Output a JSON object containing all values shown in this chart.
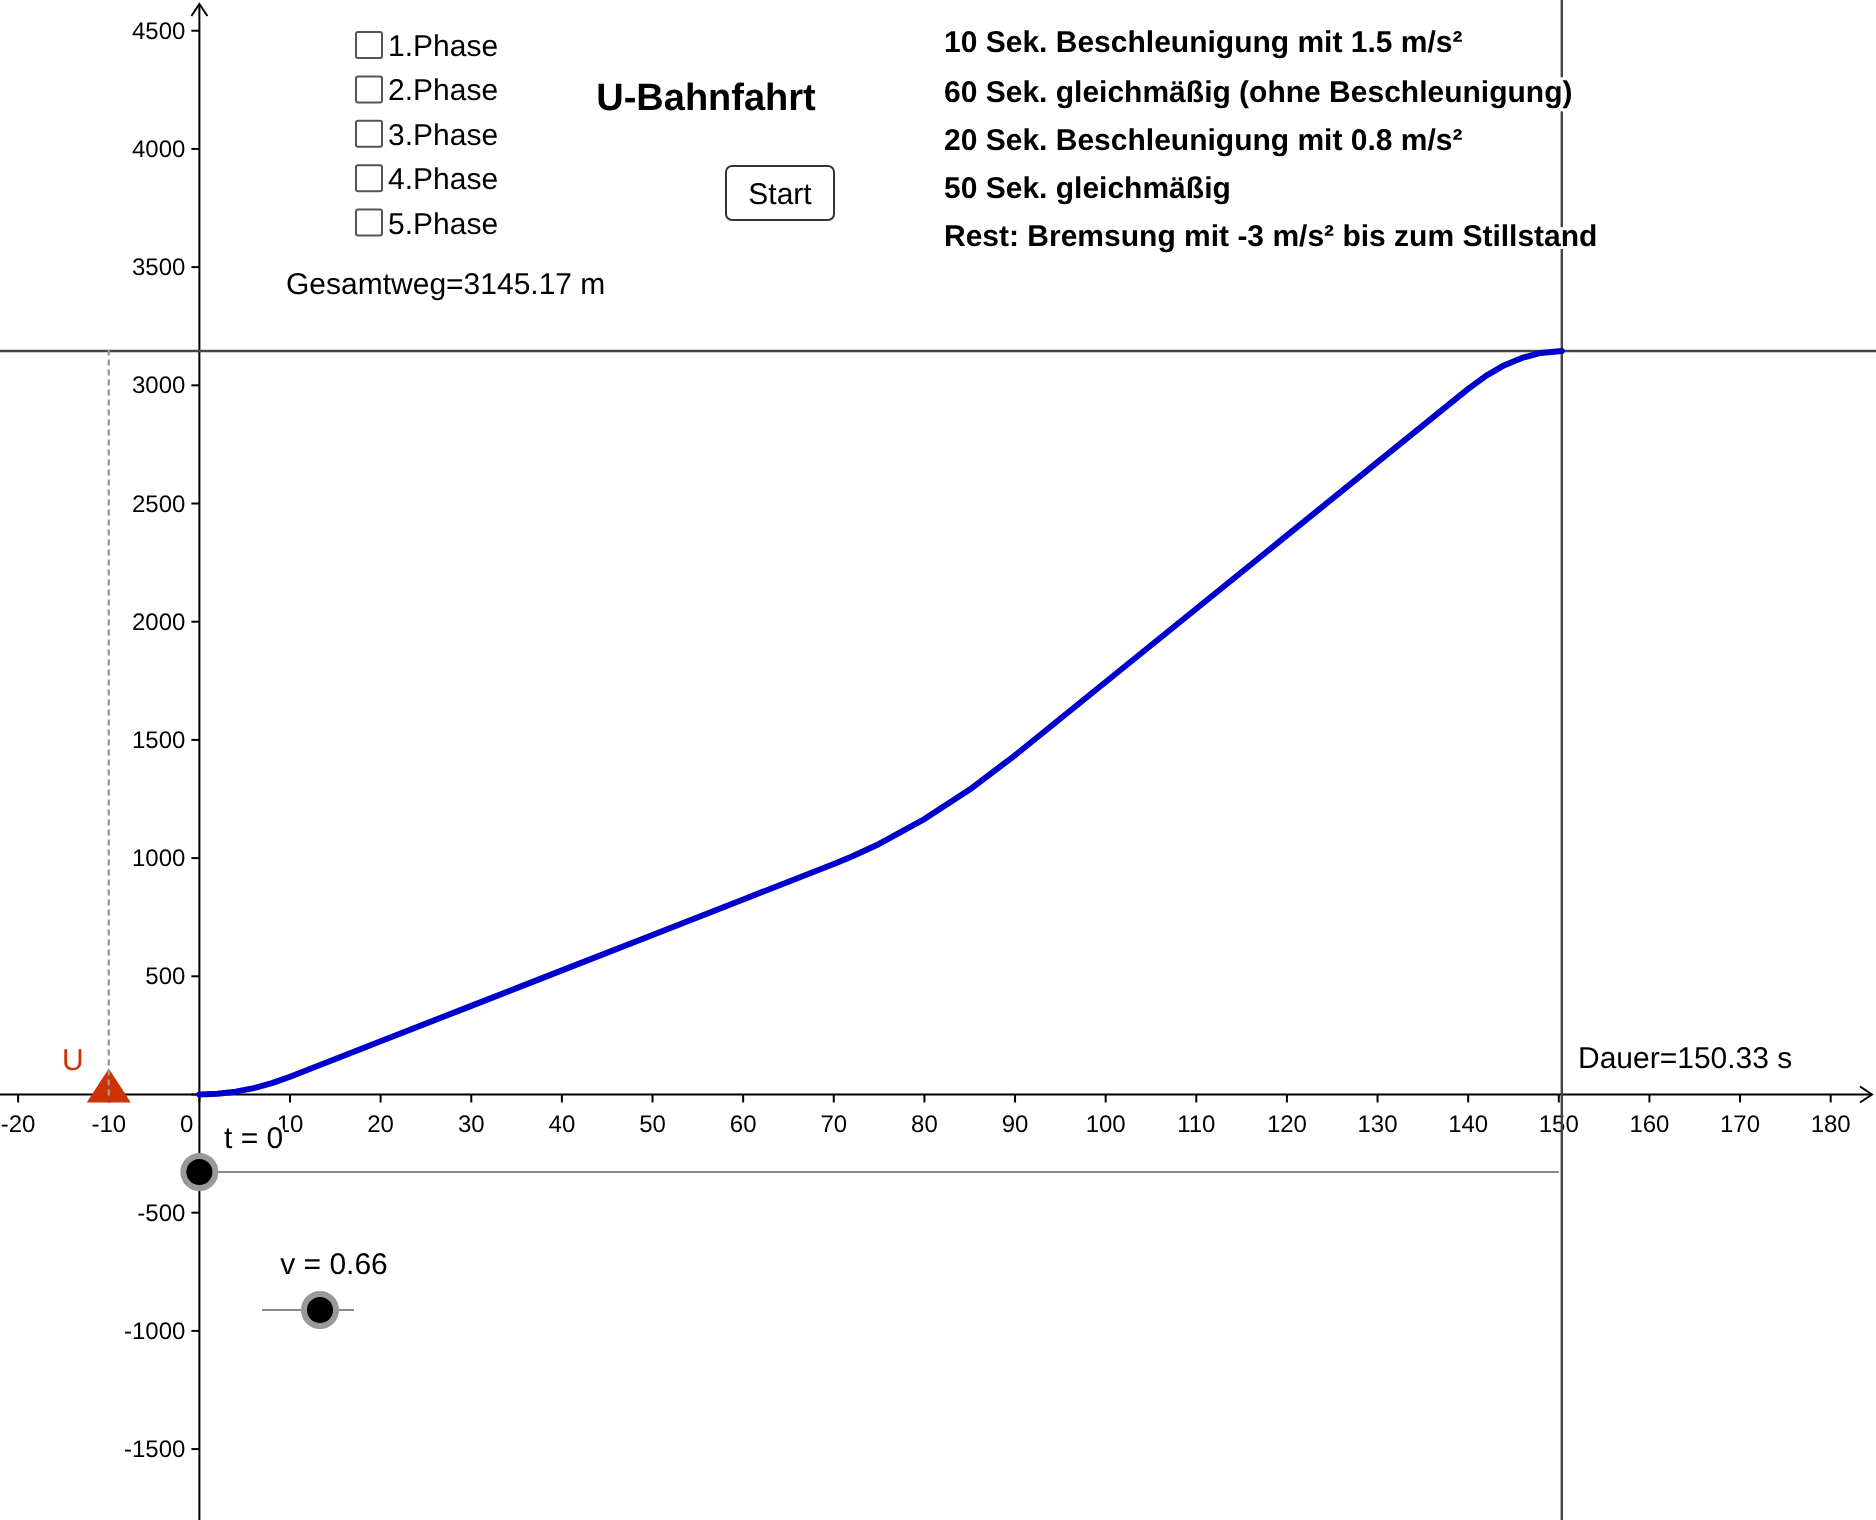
{
  "chart_data": {
    "type": "line",
    "title": "U-Bahnfahrt",
    "xlim": [
      -22,
      185
    ],
    "ylim": [
      -1800,
      4630
    ],
    "xticks": [
      -20,
      -10,
      0,
      10,
      20,
      30,
      40,
      50,
      60,
      70,
      80,
      90,
      100,
      110,
      120,
      130,
      140,
      150,
      160,
      170,
      180
    ],
    "yticks": [
      -1500,
      -1000,
      -500,
      {
        "value": 0,
        "label": null
      },
      500,
      1000,
      1500,
      2000,
      2500,
      3000,
      3500,
      4000,
      4500
    ],
    "grid": false,
    "legend": false,
    "series": [
      {
        "color": "#0000cc",
        "x": [
          0,
          2,
          4,
          6,
          8,
          10,
          20,
          30,
          40,
          50,
          60,
          70,
          72,
          75,
          80,
          85,
          90,
          100,
          110,
          120,
          130,
          140,
          142,
          144,
          146,
          148,
          150.33
        ],
        "values": [
          0,
          3,
          12,
          27,
          48,
          75,
          225,
          375,
          525,
          675,
          825,
          975,
          1007,
          1060,
          1165,
          1290,
          1435,
          1745,
          2055,
          2365,
          2675,
          2985,
          3041,
          3085,
          3117,
          3137,
          3145.17
        ]
      },
      {
        "type": "scatter",
        "name": "U",
        "marker": "triangle",
        "color": "#cc3300",
        "x": [
          -10
        ],
        "values": [
          0
        ]
      },
      {
        "type": "line",
        "line_style": "dotted",
        "color": "#999999",
        "x": [
          -10,
          -10
        ],
        "values": [
          0,
          3145.17
        ]
      }
    ],
    "ref_lines": [
      {
        "axis": "y",
        "value": 3145.17,
        "color": "#444444"
      },
      {
        "axis": "x",
        "value": 150.33,
        "color": "#444444"
      }
    ],
    "annotations": [
      "Gesamtweg=3145.17 m",
      "Dauer=150.33 s",
      "10 Sek. Beschleunigung mit 1.5 m/s²",
      "60 Sek. gleichmäßig (ohne Beschleunigung)",
      "20 Sek. Beschleunigung mit 0.8 m/s²",
      "50 Sek. gleichmäßig",
      "Rest: Bremsung mit -3 m/s² bis zum Stillstand",
      "t = 0",
      "v = 0.66",
      "Start",
      "1.Phase",
      "2.Phase",
      "3.Phase",
      "4.Phase",
      "5.Phase"
    ]
  }
}
